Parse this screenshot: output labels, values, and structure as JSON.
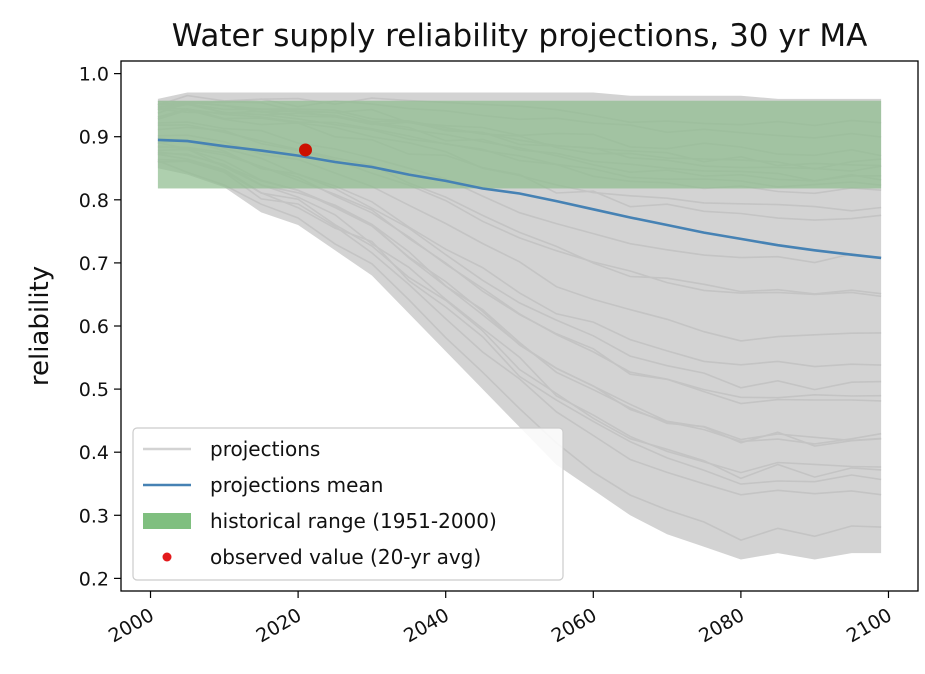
{
  "chart_data": {
    "type": "line",
    "title": "Water supply reliability projections, 30 yr MA",
    "xlabel": "",
    "ylabel": "reliability",
    "xlim": [
      1996,
      2104
    ],
    "ylim": [
      0.18,
      1.02
    ],
    "x_ticks": [
      2000,
      2020,
      2040,
      2060,
      2080,
      2100
    ],
    "x_tick_labels": [
      "2000",
      "2020",
      "2040",
      "2060",
      "2080",
      "2100"
    ],
    "y_ticks": [
      0.2,
      0.3,
      0.4,
      0.5,
      0.6,
      0.7,
      0.8,
      0.9,
      1.0
    ],
    "y_tick_labels": [
      "0.2",
      "0.3",
      "0.4",
      "0.5",
      "0.6",
      "0.7",
      "0.8",
      "0.9",
      "1.0"
    ],
    "grid": false,
    "legend_position": "lower-left",
    "series": [
      {
        "name": "projections mean",
        "color": "#4682b4",
        "x": [
          2001,
          2005,
          2010,
          2015,
          2020,
          2025,
          2030,
          2035,
          2040,
          2045,
          2050,
          2055,
          2060,
          2065,
          2070,
          2075,
          2080,
          2085,
          2090,
          2095,
          2099
        ],
        "values": [
          0.895,
          0.893,
          0.885,
          0.878,
          0.87,
          0.86,
          0.852,
          0.84,
          0.83,
          0.818,
          0.81,
          0.798,
          0.785,
          0.772,
          0.76,
          0.748,
          0.738,
          0.728,
          0.72,
          0.713,
          0.708
        ]
      }
    ],
    "projection_envelope": {
      "name": "projections",
      "color": "#d3d3d3",
      "x": [
        2001,
        2005,
        2010,
        2015,
        2020,
        2025,
        2030,
        2035,
        2040,
        2045,
        2050,
        2055,
        2060,
        2065,
        2070,
        2075,
        2080,
        2085,
        2090,
        2095,
        2099
      ],
      "upper": [
        0.96,
        0.97,
        0.97,
        0.97,
        0.97,
        0.97,
        0.97,
        0.97,
        0.97,
        0.97,
        0.97,
        0.97,
        0.97,
        0.965,
        0.965,
        0.965,
        0.965,
        0.96,
        0.96,
        0.96,
        0.96
      ],
      "lower": [
        0.85,
        0.84,
        0.82,
        0.78,
        0.76,
        0.72,
        0.68,
        0.62,
        0.56,
        0.5,
        0.44,
        0.38,
        0.34,
        0.3,
        0.27,
        0.25,
        0.23,
        0.24,
        0.23,
        0.24,
        0.24
      ]
    },
    "historical_range": {
      "name": "historical range (1951-2000)",
      "color": "#8fbc8f",
      "x_start": 2001,
      "x_end": 2099,
      "low": 0.818,
      "high": 0.957
    },
    "observed": {
      "name": "observed value (20-yr avg)",
      "color": "#cc1100",
      "x": 2021,
      "y": 0.879
    },
    "legend": [
      {
        "label": "projections",
        "kind": "line",
        "color": "#d3d3d3"
      },
      {
        "label": "projections mean",
        "kind": "line",
        "color": "#4682b4"
      },
      {
        "label": "historical range (1951-2000)",
        "kind": "patch",
        "color": "#7fbf7f"
      },
      {
        "label": "observed value (20-yr avg)",
        "kind": "dot",
        "color": "#e31a1c"
      }
    ]
  }
}
